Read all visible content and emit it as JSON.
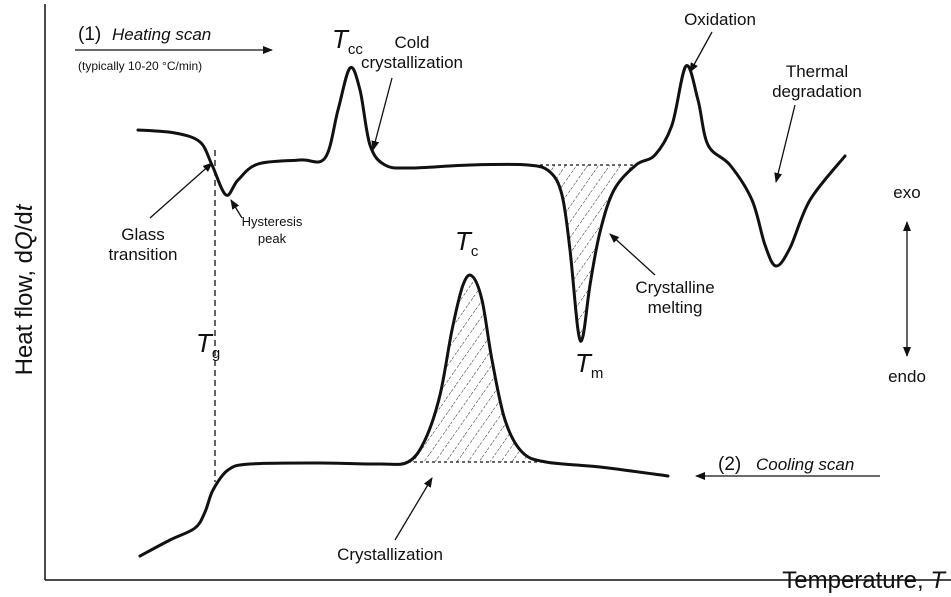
{
  "y_axis_label": [
    "Heat flow, d",
    "Q",
    "/d",
    "t"
  ],
  "x_axis_label": [
    "Temperature, ",
    "T"
  ],
  "heating_scan": {
    "number": "(1)",
    "label": "Heating scan",
    "rate": "(typically 10-20 °C/min)"
  },
  "cooling_scan": {
    "number": "(2)",
    "label": "Cooling scan"
  },
  "peaks": {
    "cold_crystallization": {
      "symbol": "T",
      "subscript": "cc",
      "label": [
        "Cold",
        "crystallization"
      ]
    },
    "glass_transition": {
      "symbol": "T",
      "subscript": "g",
      "label": [
        "Glass",
        "transition"
      ]
    },
    "melting": {
      "symbol": "T",
      "subscript": "m",
      "label": [
        "Crystalline",
        "melting"
      ]
    },
    "crystallization": {
      "symbol": "T",
      "subscript": "c",
      "label": "Crystallization"
    }
  },
  "hysteresis": [
    "Hysteresis",
    "peak"
  ],
  "oxidation": "Oxidation",
  "degradation": [
    "Thermal",
    "degradation"
  ],
  "direction": {
    "exo": "exo",
    "endo": "endo"
  }
}
